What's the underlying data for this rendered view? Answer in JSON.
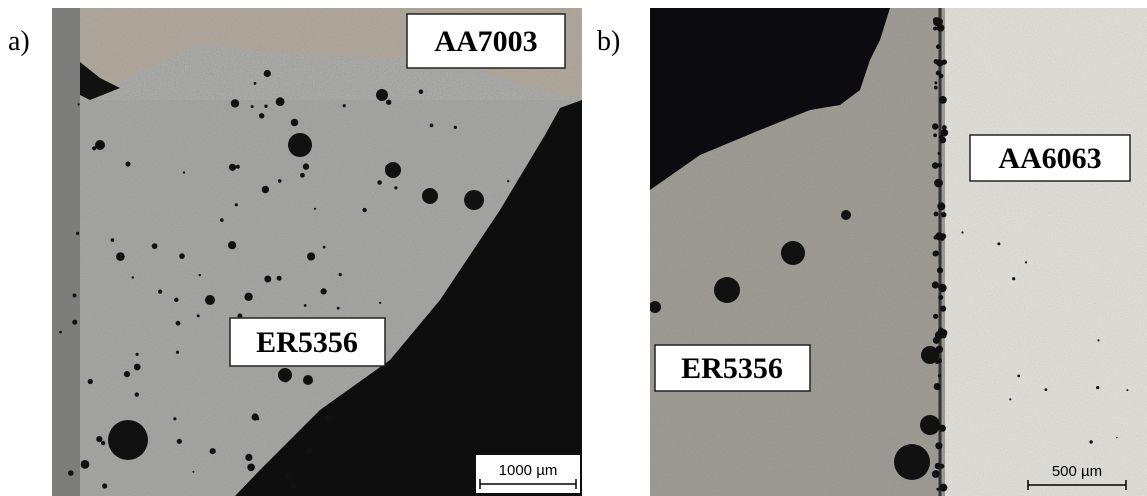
{
  "panels": [
    {
      "label": "a)",
      "top_label": "AA7003",
      "weld_label": "ER5356",
      "scale_bar": "1000 µm"
    },
    {
      "label": "b)",
      "top_label": "AA6063",
      "weld_label": "ER5356",
      "scale_bar": "500 µm"
    }
  ]
}
